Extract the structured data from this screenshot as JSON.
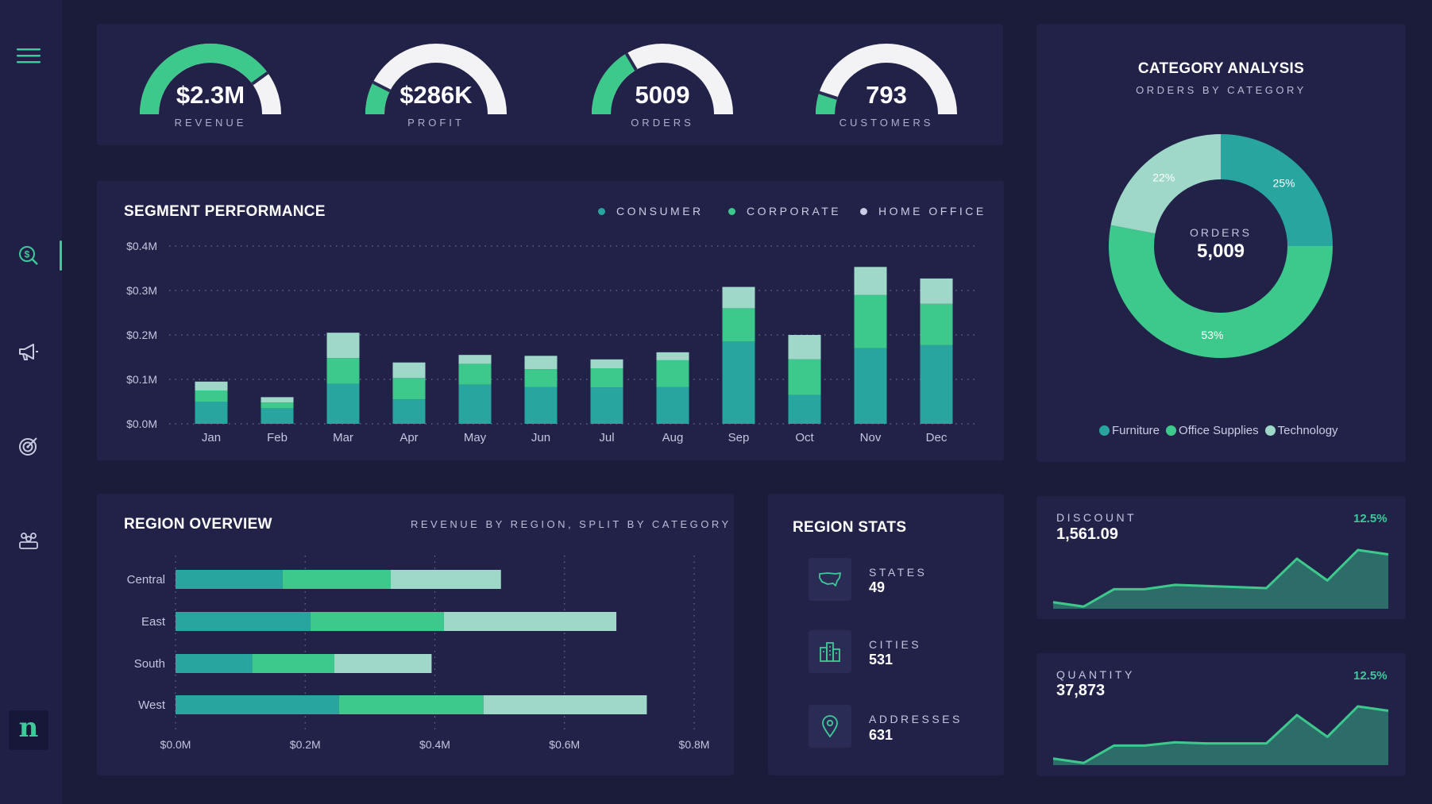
{
  "colors": {
    "background": "#1b1b3a",
    "card": "#222249",
    "consumer": "#27a59e",
    "corporate": "#3ec98c",
    "home_office": "#9fd8c9",
    "gauge_fill": "#3ec98c",
    "gauge_track": "#f3f3f5",
    "accent": "#3ec99a"
  },
  "sidebar": {
    "items": [
      {
        "icon": "menu-icon"
      },
      {
        "icon": "money-search-icon",
        "active": true
      },
      {
        "icon": "megaphone-icon"
      },
      {
        "icon": "target-icon"
      },
      {
        "icon": "team-icon"
      }
    ],
    "logo": "n"
  },
  "kpis": [
    {
      "value": "$2.3M",
      "label": "REVENUE",
      "fill": 0.8
    },
    {
      "value": "$286K",
      "label": "PROFIT",
      "fill": 0.15
    },
    {
      "value": "5009",
      "label": "ORDERS",
      "fill": 0.33
    },
    {
      "value": "793",
      "label": "CUSTOMERS",
      "fill": 0.1
    }
  ],
  "segment": {
    "title": "SEGMENT PERFORMANCE",
    "legend": [
      "CONSUMER",
      "CORPORATE",
      "HOME OFFICE"
    ]
  },
  "category": {
    "title": "CATEGORY ANALYSIS",
    "subtitle": "ORDERS BY CATEGORY",
    "center_label": "ORDERS",
    "center_value": "5,009",
    "legend": [
      "Furniture",
      "Office Supplies",
      "Technology"
    ]
  },
  "region": {
    "title": "REGION OVERVIEW",
    "subtitle": "REVENUE BY REGION, SPLIT BY CATEGORY"
  },
  "region_stats": {
    "title": "REGION STATS",
    "items": [
      {
        "label": "STATES",
        "value": "49",
        "icon": "usa-map-icon"
      },
      {
        "label": "CITIES",
        "value": "531",
        "icon": "buildings-icon"
      },
      {
        "label": "ADDRESSES",
        "value": "631",
        "icon": "location-pin-icon"
      }
    ]
  },
  "discount": {
    "label": "DISCOUNT",
    "value": "1,561.09",
    "pct": "12.5%"
  },
  "quantity": {
    "label": "QUANTITY",
    "value": "37,873",
    "pct": "12.5%"
  },
  "chart_data": [
    {
      "type": "bar",
      "stacked": true,
      "categories": [
        "Jan",
        "Feb",
        "Mar",
        "Apr",
        "May",
        "Jun",
        "Jul",
        "Aug",
        "Sep",
        "Oct",
        "Nov",
        "Dec"
      ],
      "series": [
        {
          "name": "CONSUMER",
          "values": [
            0.05,
            0.035,
            0.09,
            0.055,
            0.088,
            0.083,
            0.082,
            0.083,
            0.185,
            0.065,
            0.17,
            0.177
          ]
        },
        {
          "name": "CORPORATE",
          "values": [
            0.025,
            0.013,
            0.058,
            0.048,
            0.047,
            0.04,
            0.043,
            0.06,
            0.075,
            0.08,
            0.12,
            0.093
          ]
        },
        {
          "name": "HOME OFFICE",
          "values": [
            0.02,
            0.012,
            0.057,
            0.035,
            0.02,
            0.03,
            0.02,
            0.018,
            0.048,
            0.055,
            0.063,
            0.057
          ]
        }
      ],
      "ylim": [
        0,
        0.4
      ],
      "yticks": [
        "$0.0M",
        "$0.1M",
        "$0.2M",
        "$0.3M",
        "$0.4M"
      ],
      "grid": true,
      "legend": "top-right"
    },
    {
      "type": "pie",
      "donut": true,
      "labels": [
        "Furniture",
        "Office Supplies",
        "Technology"
      ],
      "values": [
        25,
        53,
        22
      ],
      "value_labels": [
        "25%",
        "53%",
        "22%"
      ]
    },
    {
      "type": "bar",
      "orientation": "horizontal",
      "stacked": true,
      "categories": [
        "Central",
        "East",
        "South",
        "West"
      ],
      "series": [
        {
          "name": "Furniture",
          "values": [
            0.165,
            0.208,
            0.118,
            0.252
          ]
        },
        {
          "name": "Office Supplies",
          "values": [
            0.167,
            0.206,
            0.127,
            0.223
          ]
        },
        {
          "name": "Technology",
          "values": [
            0.17,
            0.266,
            0.15,
            0.252
          ]
        }
      ],
      "xlim": [
        0,
        0.8
      ],
      "xticks": [
        "$0.0M",
        "$0.2M",
        "$0.4M",
        "$0.6M",
        "$0.8M"
      ],
      "grid": true
    },
    {
      "type": "area",
      "name": "DISCOUNT",
      "values": [
        3,
        1,
        9,
        9,
        11,
        10.5,
        10,
        9.5,
        23,
        13,
        27,
        25
      ]
    },
    {
      "type": "area",
      "name": "QUANTITY",
      "values": [
        3,
        1,
        9,
        9,
        10.5,
        10,
        10,
        10,
        23,
        13,
        27,
        25
      ]
    }
  ]
}
